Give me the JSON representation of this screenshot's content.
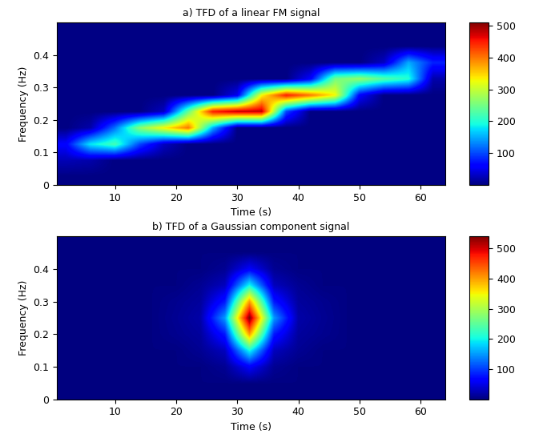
{
  "chart_data": [
    {
      "type": "heatmap",
      "title": "a) TFD of a linear FM signal",
      "x_label": "Time (s)",
      "y_label": "Frequency (Hz)",
      "x": [
        2,
        6,
        10,
        14,
        18,
        22,
        26,
        30,
        34,
        38,
        42,
        46,
        50,
        54,
        58,
        62
      ],
      "y": [
        0.025,
        0.075,
        0.125,
        0.175,
        0.225,
        0.275,
        0.325,
        0.375,
        0.425,
        0.475
      ],
      "cells": [
        [
          2,
          2,
          2,
          2,
          2,
          2,
          2,
          2,
          2,
          2,
          2,
          2,
          2,
          2,
          2,
          2
        ],
        [
          25,
          20,
          2,
          2,
          2,
          2,
          2,
          2,
          2,
          2,
          2,
          2,
          2,
          2,
          2,
          2
        ],
        [
          60,
          180,
          220,
          100,
          30,
          2,
          2,
          2,
          2,
          2,
          2,
          2,
          2,
          2,
          2,
          2
        ],
        [
          2,
          20,
          120,
          260,
          330,
          400,
          150,
          2,
          2,
          2,
          2,
          2,
          2,
          2,
          2,
          2
        ],
        [
          2,
          2,
          2,
          2,
          30,
          240,
          450,
          480,
          480,
          100,
          2,
          2,
          2,
          2,
          2,
          2
        ],
        [
          2,
          2,
          2,
          2,
          2,
          2,
          2,
          50,
          330,
          450,
          400,
          330,
          60,
          2,
          2,
          2
        ],
        [
          2,
          2,
          2,
          2,
          2,
          2,
          2,
          2,
          2,
          2,
          60,
          250,
          270,
          230,
          200,
          20
        ],
        [
          2,
          2,
          2,
          2,
          2,
          2,
          2,
          2,
          2,
          2,
          2,
          2,
          2,
          30,
          150,
          80
        ],
        [
          2,
          2,
          2,
          2,
          2,
          2,
          2,
          2,
          2,
          2,
          2,
          2,
          2,
          2,
          2,
          2
        ],
        [
          2,
          2,
          2,
          2,
          2,
          2,
          2,
          2,
          2,
          2,
          2,
          2,
          2,
          2,
          2,
          2
        ]
      ],
      "xlim": [
        0.5,
        64
      ],
      "xticks": [
        10,
        20,
        30,
        40,
        50,
        60
      ],
      "ylim": [
        0,
        0.5
      ],
      "yticks": [
        0,
        0.1,
        0.2,
        0.3,
        0.4
      ],
      "colorbar_range": [
        0,
        510
      ],
      "colorbar_ticks": [
        100,
        200,
        300,
        400,
        500
      ],
      "color": "jet"
    },
    {
      "type": "heatmap",
      "title": "b) TFD of a Gaussian component signal",
      "x_label": "Time (s)",
      "y_label": "Frequency (Hz)",
      "x": [
        0,
        4,
        8,
        12,
        16,
        20,
        24,
        28,
        32,
        36,
        40,
        44,
        48,
        52,
        56,
        60,
        64
      ],
      "y": [
        0,
        0.05,
        0.1,
        0.15,
        0.2,
        0.25,
        0.3,
        0.35,
        0.4,
        0.45,
        0.5
      ],
      "cells": [
        [
          2,
          2,
          2,
          2,
          2,
          2,
          2,
          2,
          2,
          2,
          2,
          2,
          2,
          2,
          2,
          2,
          2
        ],
        [
          2,
          2,
          2,
          2,
          2,
          2,
          2,
          2,
          2,
          2,
          2,
          2,
          2,
          2,
          2,
          2,
          2
        ],
        [
          2,
          2,
          2,
          2,
          2,
          2,
          2,
          10,
          60,
          10,
          2,
          2,
          2,
          2,
          2,
          2,
          2
        ],
        [
          2,
          2,
          2,
          2,
          2,
          2,
          10,
          30,
          200,
          30,
          10,
          2,
          2,
          2,
          2,
          2,
          2
        ],
        [
          2,
          2,
          2,
          2,
          2,
          8,
          15,
          80,
          400,
          80,
          15,
          8,
          2,
          2,
          2,
          2,
          2
        ],
        [
          2,
          2,
          2,
          2,
          2,
          10,
          20,
          150,
          540,
          150,
          20,
          10,
          2,
          2,
          2,
          2,
          2
        ],
        [
          2,
          2,
          2,
          2,
          2,
          8,
          15,
          80,
          400,
          80,
          15,
          8,
          2,
          2,
          2,
          2,
          2
        ],
        [
          2,
          2,
          2,
          2,
          2,
          2,
          10,
          30,
          200,
          30,
          10,
          2,
          2,
          2,
          2,
          2,
          2
        ],
        [
          2,
          2,
          2,
          2,
          2,
          2,
          2,
          10,
          60,
          10,
          2,
          2,
          2,
          2,
          2,
          2,
          2
        ],
        [
          2,
          2,
          2,
          2,
          2,
          2,
          2,
          2,
          2,
          2,
          2,
          2,
          2,
          2,
          2,
          2,
          2
        ],
        [
          2,
          2,
          2,
          2,
          2,
          2,
          2,
          2,
          2,
          2,
          2,
          2,
          2,
          2,
          2,
          2,
          2
        ]
      ],
      "xlim": [
        0.5,
        64
      ],
      "xticks": [
        10,
        20,
        30,
        40,
        50,
        60
      ],
      "ylim": [
        0,
        0.5
      ],
      "yticks": [
        0,
        0.1,
        0.2,
        0.3,
        0.4
      ],
      "colorbar_range": [
        0,
        540
      ],
      "colorbar_ticks": [
        100,
        200,
        300,
        400,
        500
      ],
      "color": "jet"
    }
  ]
}
